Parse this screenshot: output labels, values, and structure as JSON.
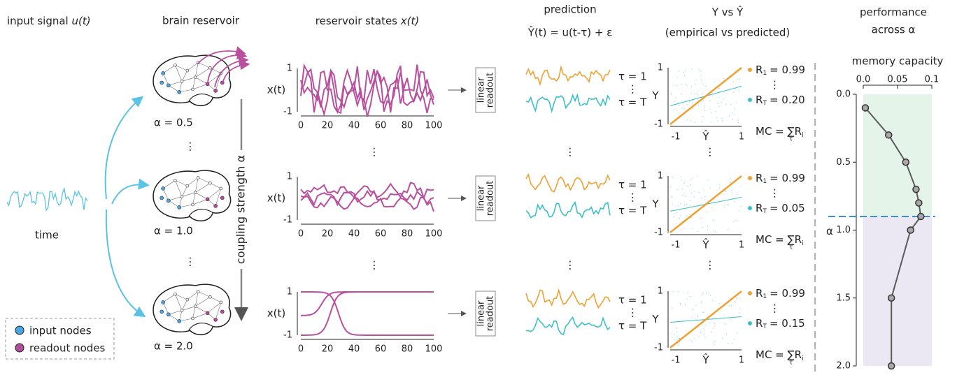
{
  "header": {
    "input": "input signal ",
    "input_var": "u(t)",
    "brain": "brain reservoir",
    "states": "reservoir states ",
    "states_var": "x(t)",
    "prediction": "prediction",
    "formula": "Ŷ(t) = u(t-τ) + ε",
    "scatter": "Y vs Ŷ",
    "scatter_sub": "(empirical vs predicted)",
    "performance": "performance",
    "performance_sub": "across α"
  },
  "input_axis": "time",
  "coupling": "coupling strength α",
  "ellipsis": "⋮",
  "legend": {
    "input": "input nodes",
    "readout": "readout nodes"
  },
  "states_axis": {
    "ylabel": "x(t)",
    "ytop": "1",
    "ybottom": "-1",
    "xticks": [
      "0",
      "20",
      "40",
      "60",
      "80",
      "100"
    ]
  },
  "readout": [
    "linear",
    "readout"
  ],
  "taus": {
    "first": "τ = 1",
    "last": "τ = T"
  },
  "scatter_axis": {
    "ylabel": "Y",
    "xlabel": "Ŷ",
    "max": "1",
    "min": "-1"
  },
  "r_symbol": "R",
  "sub_first": "1",
  "sub_last": "T",
  "mc": {
    "text": "MC = ",
    "sum": "∑",
    "r": "R",
    "sub_tau": "τ",
    "sub_i": "i"
  },
  "rows": [
    {
      "alpha": "α = 0.5",
      "r_first": "= 0.99",
      "r_last": "= 0.20"
    },
    {
      "alpha": "α = 1.0",
      "r_first": "= 0.99",
      "r_last": "= 0.05"
    },
    {
      "alpha": "α = 2.0",
      "r_first": "= 0.99",
      "r_last": "= 0.15"
    }
  ],
  "chart_data": {
    "type": "line",
    "title": "memory capacity",
    "xlabel": "α",
    "x": [
      0.1,
      0.3,
      0.5,
      0.7,
      0.8,
      0.9,
      1.0,
      1.5,
      2.0
    ],
    "values": [
      0.003,
      0.037,
      0.062,
      0.077,
      0.081,
      0.084,
      0.069,
      0.041,
      0.041
    ],
    "xlim": [
      0,
      2
    ],
    "xticks": [
      {
        "value": 0,
        "label": "0.0"
      },
      0.5,
      {
        "value": 1,
        "label": "1.0"
      },
      1.5,
      {
        "value": 2,
        "label": "2.0"
      }
    ],
    "ylim": [
      0,
      0.1
    ],
    "yticks": [
      {
        "value": 0,
        "label": "0.0"
      },
      0.05,
      0.1
    ],
    "color": "#5b5b5b",
    "marker_color": "#a8a8a8",
    "regions": [
      {
        "from": 0,
        "to": 0.9,
        "color": "#e4f4e8"
      },
      {
        "from": 0.9,
        "to": 2,
        "color": "#ebe7f3"
      }
    ],
    "threshold": {
      "value": 0.9,
      "color": "#3a8fd6"
    }
  }
}
